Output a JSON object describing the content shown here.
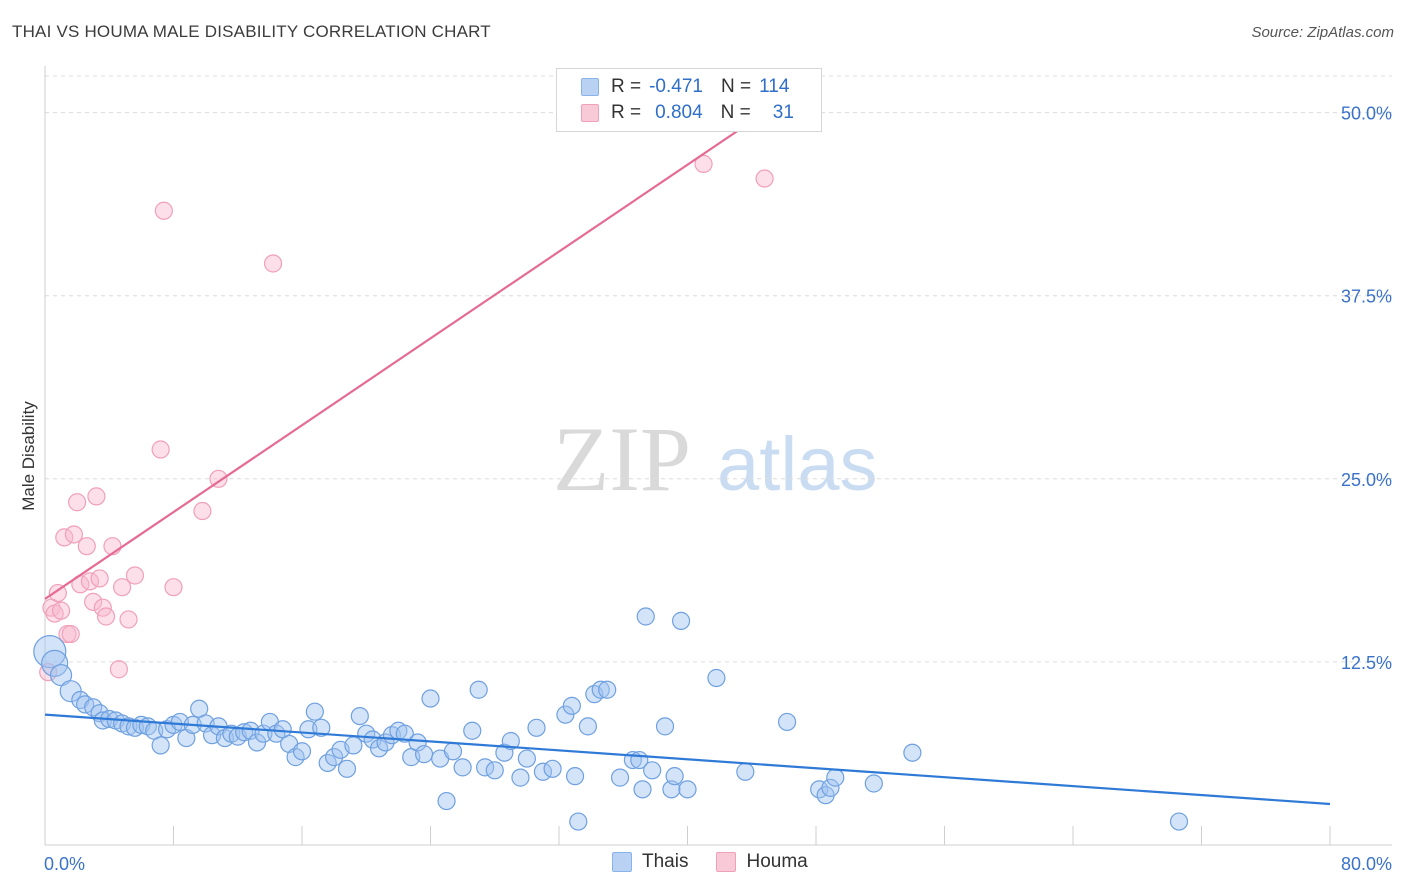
{
  "title": "THAI VS HOUMA MALE DISABILITY CORRELATION CHART",
  "source": "Source: ZipAtlas.com",
  "watermark": {
    "zip": "ZIP",
    "atlas": "atlas"
  },
  "legend": {
    "r_label": "R =",
    "n_label": "N =",
    "series": [
      {
        "r": "-0.471",
        "n": "114",
        "color": "#8ab4e8",
        "fill": "#b9d1f2"
      },
      {
        "r": "0.804",
        "n": "31",
        "color": "#f0a0b8",
        "fill": "#f8c9d7"
      }
    ]
  },
  "bottom_legend": [
    "Thais",
    "Houma"
  ],
  "colors": {
    "thai": "#2f7ad6",
    "houma": "#e56b94",
    "tick_label": "#3a72c9"
  },
  "chart_data": {
    "type": "scatter",
    "xlabel": "",
    "ylabel": "Male Disability",
    "xlim": [
      0,
      80
    ],
    "ylim": [
      0,
      52.5
    ],
    "x_tick_labels": [
      "0.0%",
      "80.0%"
    ],
    "y_ticks": [
      12.5,
      25.0,
      37.5,
      50.0
    ],
    "y_tick_labels": [
      "12.5%",
      "25.0%",
      "37.5%",
      "50.0%"
    ],
    "grid": true,
    "series": [
      {
        "name": "Thais",
        "color": "#6fa0e0",
        "trend": {
          "x": [
            0,
            80
          ],
          "y": [
            8.9,
            2.8
          ]
        },
        "points": [
          [
            0.3,
            13.2
          ],
          [
            0.6,
            12.4
          ],
          [
            1.0,
            11.6
          ],
          [
            1.6,
            10.5
          ],
          [
            2.2,
            9.9
          ],
          [
            2.5,
            9.6
          ],
          [
            3.0,
            9.4
          ],
          [
            3.4,
            9.0
          ],
          [
            3.6,
            8.5
          ],
          [
            4.0,
            8.6
          ],
          [
            4.4,
            8.5
          ],
          [
            4.8,
            8.3
          ],
          [
            5.2,
            8.1
          ],
          [
            5.6,
            8.0
          ],
          [
            6.0,
            8.2
          ],
          [
            6.4,
            8.1
          ],
          [
            6.8,
            7.8
          ],
          [
            7.2,
            6.8
          ],
          [
            7.6,
            7.9
          ],
          [
            8.0,
            8.2
          ],
          [
            8.4,
            8.4
          ],
          [
            8.8,
            7.3
          ],
          [
            9.2,
            8.2
          ],
          [
            9.6,
            9.3
          ],
          [
            10.0,
            8.3
          ],
          [
            10.4,
            7.5
          ],
          [
            10.8,
            8.1
          ],
          [
            11.2,
            7.3
          ],
          [
            11.6,
            7.6
          ],
          [
            12.0,
            7.4
          ],
          [
            12.4,
            7.7
          ],
          [
            12.8,
            7.8
          ],
          [
            13.2,
            7.0
          ],
          [
            13.6,
            7.6
          ],
          [
            14.0,
            8.4
          ],
          [
            14.4,
            7.6
          ],
          [
            14.8,
            7.9
          ],
          [
            15.2,
            6.9
          ],
          [
            15.6,
            6.0
          ],
          [
            16.0,
            6.4
          ],
          [
            16.4,
            7.9
          ],
          [
            16.8,
            9.1
          ],
          [
            17.2,
            8.0
          ],
          [
            17.6,
            5.6
          ],
          [
            18.0,
            6.0
          ],
          [
            18.4,
            6.5
          ],
          [
            18.8,
            5.2
          ],
          [
            19.2,
            6.8
          ],
          [
            19.6,
            8.8
          ],
          [
            20.0,
            7.6
          ],
          [
            20.4,
            7.2
          ],
          [
            20.8,
            6.6
          ],
          [
            21.2,
            7.0
          ],
          [
            21.6,
            7.5
          ],
          [
            22.0,
            7.8
          ],
          [
            22.4,
            7.6
          ],
          [
            22.8,
            6.0
          ],
          [
            23.2,
            7.0
          ],
          [
            23.6,
            6.2
          ],
          [
            24.0,
            10.0
          ],
          [
            24.6,
            5.9
          ],
          [
            25.0,
            3.0
          ],
          [
            25.4,
            6.4
          ],
          [
            26.0,
            5.3
          ],
          [
            26.6,
            7.8
          ],
          [
            27.0,
            10.6
          ],
          [
            27.4,
            5.3
          ],
          [
            28.0,
            5.1
          ],
          [
            28.6,
            6.3
          ],
          [
            29.0,
            7.1
          ],
          [
            29.6,
            4.6
          ],
          [
            30.0,
            5.9
          ],
          [
            30.6,
            8.0
          ],
          [
            31.0,
            5.0
          ],
          [
            31.6,
            5.2
          ],
          [
            32.4,
            8.9
          ],
          [
            32.8,
            9.5
          ],
          [
            33.0,
            4.7
          ],
          [
            33.2,
            1.6
          ],
          [
            33.8,
            8.1
          ],
          [
            34.2,
            10.3
          ],
          [
            34.6,
            10.6
          ],
          [
            35.0,
            10.6
          ],
          [
            35.8,
            4.6
          ],
          [
            36.6,
            5.8
          ],
          [
            37.0,
            5.8
          ],
          [
            37.2,
            3.8
          ],
          [
            37.4,
            15.6
          ],
          [
            37.8,
            5.1
          ],
          [
            38.6,
            8.1
          ],
          [
            39.0,
            3.8
          ],
          [
            39.2,
            4.7
          ],
          [
            39.6,
            15.3
          ],
          [
            40.0,
            3.8
          ],
          [
            41.8,
            11.4
          ],
          [
            43.6,
            5.0
          ],
          [
            46.2,
            8.4
          ],
          [
            48.2,
            3.8
          ],
          [
            48.6,
            3.4
          ],
          [
            48.9,
            3.9
          ],
          [
            49.2,
            4.6
          ],
          [
            51.6,
            4.2
          ],
          [
            54.0,
            6.3
          ],
          [
            70.6,
            1.6
          ]
        ],
        "sizes_hint": "large points near origin"
      },
      {
        "name": "Houma",
        "color": "#f0a0b8",
        "trend": {
          "x": [
            0,
            44.8
          ],
          "y": [
            16.8,
            50.0
          ]
        },
        "points": [
          [
            0.2,
            11.8
          ],
          [
            0.4,
            16.2
          ],
          [
            0.6,
            15.8
          ],
          [
            0.8,
            17.2
          ],
          [
            1.0,
            16.0
          ],
          [
            1.2,
            21.0
          ],
          [
            1.4,
            14.4
          ],
          [
            1.6,
            14.4
          ],
          [
            1.8,
            21.2
          ],
          [
            2.0,
            23.4
          ],
          [
            2.2,
            17.8
          ],
          [
            2.6,
            20.4
          ],
          [
            2.8,
            18.0
          ],
          [
            3.0,
            16.6
          ],
          [
            3.2,
            23.8
          ],
          [
            3.4,
            18.2
          ],
          [
            3.6,
            16.2
          ],
          [
            3.8,
            15.6
          ],
          [
            4.2,
            20.4
          ],
          [
            4.6,
            12.0
          ],
          [
            4.8,
            17.6
          ],
          [
            5.2,
            15.4
          ],
          [
            5.6,
            18.4
          ],
          [
            7.2,
            27.0
          ],
          [
            7.4,
            43.3
          ],
          [
            8.0,
            17.6
          ],
          [
            9.8,
            22.8
          ],
          [
            10.8,
            25.0
          ],
          [
            14.2,
            39.7
          ],
          [
            41.0,
            46.5
          ],
          [
            44.8,
            45.5
          ]
        ]
      }
    ]
  }
}
